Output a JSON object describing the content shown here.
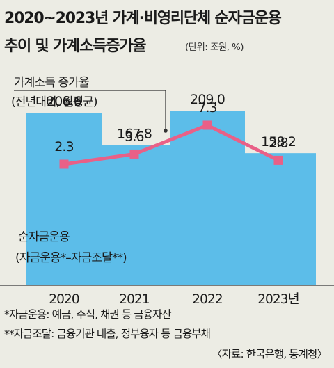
{
  "title_line1": "2020~2023년 가계·비영리단체 순자금운용",
  "title_line2": "추이 및 가계소득증가율",
  "unit": "(단위: 조원, %)",
  "footnotes": [
    "*자금운용: 예금, 주식, 채권 등 금융자산",
    "**자금조달: 금융기관 대출, 정부융자 등 금융부채"
  ],
  "source": "〈자료: 한국은행, 통계청〉",
  "colors": {
    "background": "#ecece4",
    "bar": "#5cbde9",
    "line": "#e96087",
    "baseline": "#555555"
  },
  "chart_data": {
    "type": "bar",
    "categories": [
      "2020",
      "2021",
      "2022",
      "2023년"
    ],
    "series": [
      {
        "name": "순자금운용",
        "name_sub": "(자금운용*–자금조달**)",
        "type": "bar",
        "values": [
          206.6,
          167.8,
          209.0,
          158.2
        ],
        "labels": [
          "206.6",
          "167.8",
          "209.0",
          "158.2"
        ]
      },
      {
        "name": "가계소득 증가율",
        "name_sub": "(전년대비, 월평균)",
        "type": "line",
        "values": [
          2.3,
          3.6,
          7.3,
          2.8
        ],
        "labels": [
          "2.3",
          "3.6",
          "7.3",
          "2.8"
        ]
      }
    ],
    "legend": "in-plot annotations"
  }
}
